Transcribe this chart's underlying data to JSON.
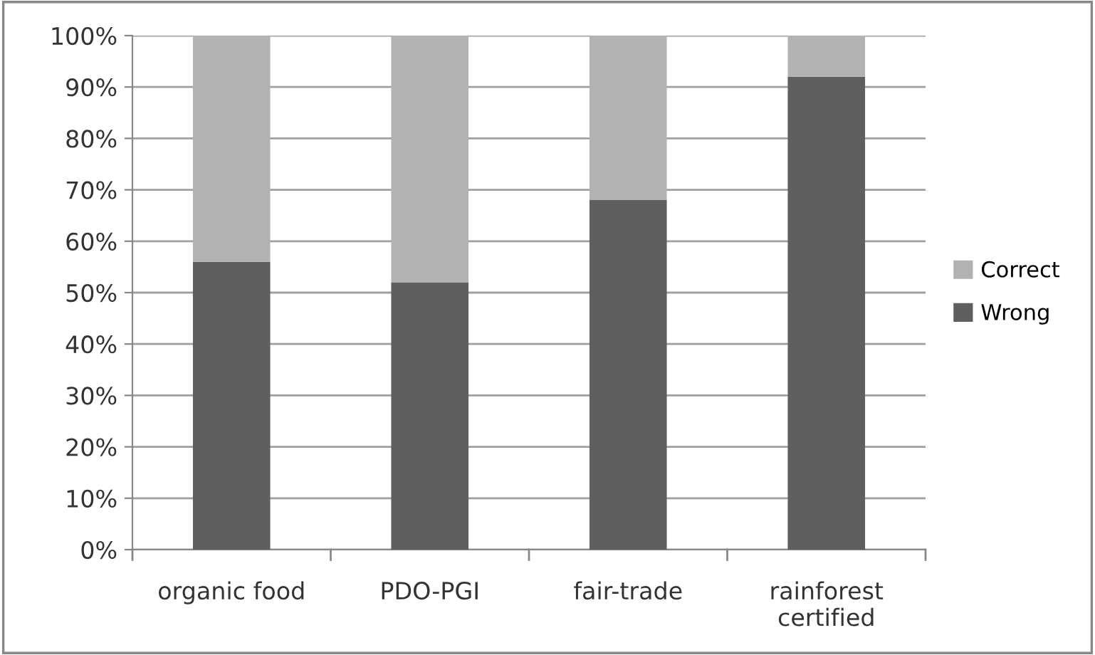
{
  "chart_data": {
    "type": "bar",
    "stacked": true,
    "categories": [
      "organic food",
      "PDO-PGI",
      "fair-trade",
      "rainforest\ncertified"
    ],
    "series": [
      {
        "name": "Wrong",
        "color": "#5f5f5f",
        "values": [
          56,
          52,
          68,
          92
        ]
      },
      {
        "name": "Correct",
        "color": "#b2b2b2",
        "values": [
          44,
          48,
          32,
          8
        ]
      }
    ],
    "ylim": [
      0,
      100
    ],
    "yticks": [
      {
        "value": 0,
        "label": "0%"
      },
      {
        "value": 10,
        "label": "10%"
      },
      {
        "value": 20,
        "label": "20%"
      },
      {
        "value": 30,
        "label": "30%"
      },
      {
        "value": 40,
        "label": "40%"
      },
      {
        "value": 50,
        "label": "50%"
      },
      {
        "value": 60,
        "label": "60%"
      },
      {
        "value": 70,
        "label": "70%"
      },
      {
        "value": 80,
        "label": "80%"
      },
      {
        "value": 90,
        "label": "90%"
      },
      {
        "value": 100,
        "label": "100%"
      }
    ],
    "grid": "y",
    "legend": "right"
  }
}
